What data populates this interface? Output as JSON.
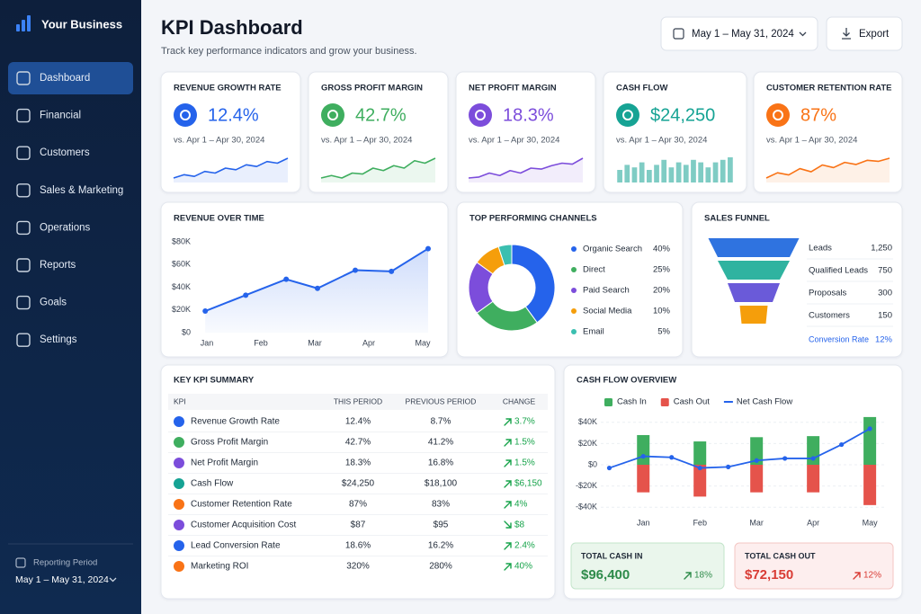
{
  "sidebar": {
    "brand": "Your Business",
    "nav": {
      "items": [
        "Dashboard",
        "Financial",
        "Customers",
        "Sales & Marketing",
        "Operations",
        "Reports",
        "Goals",
        "Settings"
      ],
      "active": 0
    },
    "reporting_period": {
      "label": "Reporting Period",
      "value": "May 1 – May 31, 2024"
    }
  },
  "header": {
    "title": "KPI Dashboard",
    "subtitle": "Track key performance indicators and grow your business.",
    "date_range": "May 1 – May 31, 2024",
    "export": "Export"
  },
  "kpi_cards": [
    {
      "title": "REVENUE GROWTH RATE",
      "value": "12.4%",
      "comparison": "vs. Apr 1 – Apr 30, 2024",
      "color": "#2563eb",
      "spark_type": "line",
      "spark": [
        3,
        4,
        3.5,
        5,
        4.5,
        6,
        5.5,
        7,
        6.5,
        8,
        7.5,
        9
      ]
    },
    {
      "title": "GROSS PROFIT MARGIN",
      "value": "42.7%",
      "comparison": "vs. Apr 1 – Apr 30, 2024",
      "color": "#3fae5f",
      "spark_type": "line",
      "spark": [
        3,
        3.5,
        3,
        4,
        3.8,
        5,
        4.5,
        5.5,
        5,
        6.5,
        6,
        7
      ]
    },
    {
      "title": "NET PROFIT MARGIN",
      "value": "18.3%",
      "comparison": "vs. Apr 1 – Apr 30, 2024",
      "color": "#7c4ddb",
      "spark_type": "line",
      "spark": [
        3,
        3.2,
        4,
        3.5,
        4.5,
        4,
        5,
        4.8,
        5.5,
        6,
        5.8,
        7
      ]
    },
    {
      "title": "CASH FLOW",
      "value": "$24,250",
      "comparison": "vs. Apr 1 – Apr 30, 2024",
      "color": "#16a394",
      "spark_type": "bar",
      "spark": [
        5,
        7,
        6,
        8,
        5,
        7,
        9,
        6,
        8,
        7,
        9,
        8,
        6,
        8,
        9,
        10
      ]
    },
    {
      "title": "CUSTOMER RETENTION RATE",
      "value": "87%",
      "comparison": "vs. Apr 1 – Apr 30, 2024",
      "color": "#f97316",
      "spark_type": "line",
      "spark": [
        3,
        4,
        3.6,
        4.8,
        4.2,
        5.5,
        5,
        6,
        5.6,
        6.4,
        6.2,
        6.8
      ]
    }
  ],
  "revenue_over_time": {
    "type": "line",
    "title": "REVENUE OVER TIME",
    "x": [
      -0.03,
      0.72,
      1.47,
      2.05,
      2.75,
      3.42,
      4.1
    ],
    "values": [
      19000,
      33000,
      47000,
      39000,
      55000,
      54000,
      74000
    ],
    "color": "#2563eb",
    "area": true,
    "xlim": [
      -0.1,
      4.2
    ],
    "xticks": [
      {
        "value": 0,
        "label": "Jan"
      },
      {
        "value": 1,
        "label": "Feb"
      },
      {
        "value": 2,
        "label": "Mar"
      },
      {
        "value": 3,
        "label": "Apr"
      },
      {
        "value": 4,
        "label": "May"
      }
    ],
    "ylim": [
      0,
      80000
    ],
    "yticks": [
      {
        "value": 0,
        "label": "$0"
      },
      {
        "value": 20000,
        "label": "$20K"
      },
      {
        "value": 40000,
        "label": "$40K"
      },
      {
        "value": 60000,
        "label": "$60K"
      },
      {
        "value": 80000,
        "label": "$80K"
      }
    ]
  },
  "top_channels": {
    "type": "donut",
    "title": "TOP PERFORMING CHANNELS",
    "categories": [
      "Organic Search",
      "Direct",
      "Paid Search",
      "Social Media",
      "Email"
    ],
    "values": [
      40,
      25,
      20,
      10,
      5
    ],
    "value_labels": [
      "40%",
      "25%",
      "20%",
      "10%",
      "5%"
    ],
    "colors": [
      "#2563eb",
      "#3fae5f",
      "#7c4ddb",
      "#f59e0b",
      "#3bbfb0"
    ]
  },
  "sales_funnel": {
    "type": "funnel",
    "title": "SALES FUNNEL",
    "stages": [
      "Leads",
      "Qualified Leads",
      "Proposals",
      "Customers"
    ],
    "values": [
      1250,
      750,
      300,
      150
    ],
    "value_labels": [
      "1,250",
      "750",
      "300",
      "150"
    ],
    "colors": [
      "#2f73e0",
      "#2fb3a0",
      "#6a5ad9",
      "#f59e0b"
    ],
    "conversion": {
      "label": "Conversion Rate",
      "value": 12,
      "value_label": "12%"
    }
  },
  "kpi_summary": {
    "title": "KEY KPI SUMMARY",
    "columns": [
      "KPI",
      "THIS PERIOD",
      "PREVIOUS PERIOD",
      "CHANGE"
    ],
    "rows": [
      [
        "Revenue Growth Rate",
        "12.4%",
        "8.7%",
        "3.7%"
      ],
      [
        "Gross Profit Margin",
        "42.7%",
        "41.2%",
        "1.5%"
      ],
      [
        "Net Profit Margin",
        "18.3%",
        "16.8%",
        "1.5%"
      ],
      [
        "Cash Flow",
        "$24,250",
        "$18,100",
        "$6,150"
      ],
      [
        "Customer Retention Rate",
        "87%",
        "83%",
        "4%"
      ],
      [
        "Customer Acquisition Cost",
        "$87",
        "$95",
        "$8"
      ],
      [
        "Lead Conversion Rate",
        "18.6%",
        "16.2%",
        "2.4%"
      ],
      [
        "Marketing ROI",
        "320%",
        "280%",
        "40%"
      ]
    ],
    "directions": [
      "up",
      "up",
      "up",
      "up",
      "up",
      "down",
      "up",
      "up"
    ],
    "icon_colors": [
      "#2563eb",
      "#3fae5f",
      "#7c4ddb",
      "#16a394",
      "#f97316",
      "#7c4ddb",
      "#2563eb",
      "#f97316"
    ],
    "change_color": "#16a34a"
  },
  "cash_flow": {
    "type": "bar_line",
    "title": "CASH FLOW OVERVIEW",
    "categories": [
      "Jan",
      "Feb",
      "Mar",
      "Apr",
      "May"
    ],
    "series": [
      {
        "name": "Cash In",
        "color": "#3fae5f",
        "values": [
          28000,
          22000,
          26000,
          27000,
          45000
        ]
      },
      {
        "name": "Cash Out",
        "color": "#e5534b",
        "values": [
          -26000,
          -30000,
          -26000,
          -26000,
          -38000
        ]
      },
      {
        "name": "Net Cash Flow",
        "color": "#2563eb",
        "type": "line",
        "x": [
          -0.6,
          0,
          0.5,
          1,
          1.5,
          2,
          2.5,
          3,
          3.5,
          4
        ],
        "values": [
          -3000,
          8000,
          7000,
          -3000,
          -2000,
          4000,
          6000,
          6000,
          19000,
          34000
        ]
      }
    ],
    "xlim": [
      -0.75,
      4.3
    ],
    "ylim": [
      -50000,
      50000
    ],
    "yticks": [
      {
        "value": -40000,
        "label": "-$40K"
      },
      {
        "value": -20000,
        "label": "-$20K"
      },
      {
        "value": 0,
        "label": "$0"
      },
      {
        "value": 20000,
        "label": "$20K"
      },
      {
        "value": 40000,
        "label": "$40K"
      }
    ],
    "grid": true,
    "totals": [
      {
        "label": "TOTAL CASH IN",
        "value": "$96,400",
        "change": "18%",
        "direction": "up",
        "color": "#2e8b4a",
        "bg": "#eaf6ec",
        "border": "#c3e4ca"
      },
      {
        "label": "TOTAL CASH OUT",
        "value": "$72,150",
        "change": "12%",
        "direction": "up",
        "color": "#d93c35",
        "bg": "#fdeeee",
        "border": "#f4c6c3"
      }
    ]
  }
}
